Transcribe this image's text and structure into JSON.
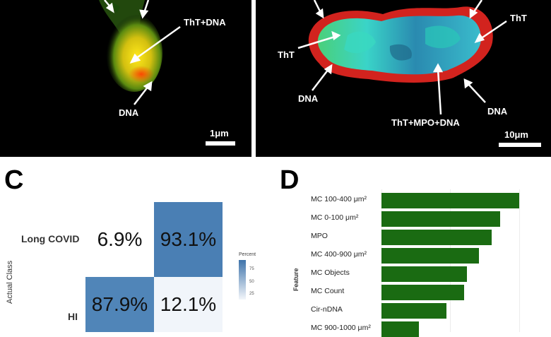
{
  "panel_a": {
    "label_tht_dna": "ThT+DNA",
    "label_dna": "DNA",
    "scale_bar": "1μm"
  },
  "panel_b": {
    "label_tht_left": "ThT",
    "label_tht_right": "ThT",
    "label_dna_left": "DNA",
    "label_dna_right": "DNA",
    "label_tht_mpo_dna": "ThT+MPO+DNA",
    "scale_bar": "10μm"
  },
  "panel_c": {
    "letter": "C",
    "y_axis_label": "Actual Class",
    "rows": [
      "Long COVID",
      "HI"
    ],
    "cells": [
      [
        "6.9%",
        "93.1%"
      ],
      [
        "87.9%",
        "12.1%"
      ]
    ],
    "legend_title": "Percent",
    "legend_ticks": [
      "75",
      "50",
      "25"
    ]
  },
  "panel_d": {
    "letter": "D",
    "y_axis_label": "Feature"
  },
  "chart_data": {
    "type": "bar",
    "orientation": "horizontal",
    "ylabel": "Feature",
    "categories": [
      "MC 100-400 μm²",
      "MC 0-100 μm²",
      "MPO",
      "MC  400-900 μm²",
      "MC  Objects",
      "MC Count",
      "Cir-nDNA",
      "MC 900-1000 μm²"
    ],
    "values": [
      1.0,
      0.86,
      0.8,
      0.71,
      0.62,
      0.6,
      0.47,
      0.27
    ]
  },
  "colors": {
    "bar": "#1a6b12",
    "cm_high": "#4a7fb4",
    "cm_low": "#f1f5fa"
  }
}
